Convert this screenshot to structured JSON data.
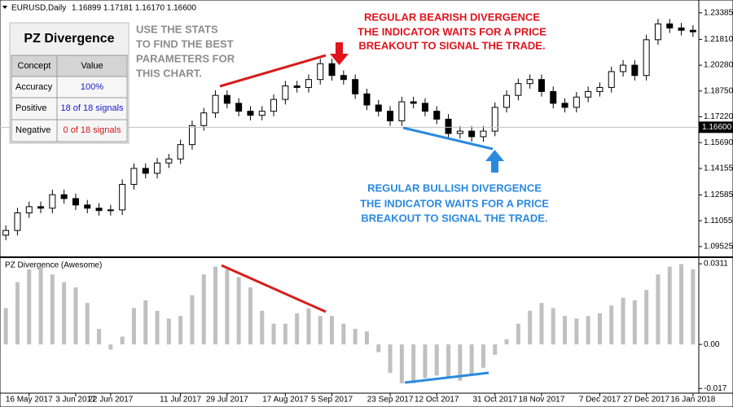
{
  "header": {
    "symbol": "EURUSD,Daily",
    "ohlc": "1.16899 1.17181 1.16170 1.16600"
  },
  "stats_table": {
    "title": "PZ Divergence",
    "columns": [
      "Concept",
      "Value"
    ],
    "rows": [
      [
        "Accuracy",
        "100%"
      ],
      [
        "Positive",
        "18 of 18 signals"
      ],
      [
        "Negative",
        "0 of 18 signals"
      ]
    ]
  },
  "annotations": {
    "stats_hint": [
      "USE THE STATS",
      "TO FIND THE BEST",
      "PARAMETERS FOR",
      "THIS CHART."
    ],
    "bearish": [
      "REGULAR BEARISH DIVERGENCE",
      "THE INDICATOR WAITS FOR A PRICE",
      "BREAKOUT TO SIGNAL THE TRADE."
    ],
    "bullish": [
      "REGULAR BULLISH DIVERGENCE",
      "THE INDICATOR WAITS FOR A PRICE",
      "BREAKOUT TO SIGNAL THE TRADE."
    ]
  },
  "chart_data": [
    {
      "type": "candlestick",
      "title": "EURUSD,Daily",
      "categories": [
        null,
        null,
        "16 May 2017",
        null,
        null,
        null,
        "3 Jun 2017",
        null,
        null,
        "22 Jun 2017",
        null,
        null,
        null,
        null,
        null,
        "11 Jul 2017",
        null,
        null,
        null,
        "29 Jul 2017",
        null,
        null,
        null,
        null,
        "17 Aug 2017",
        null,
        null,
        null,
        "5 Sep 2017",
        null,
        null,
        null,
        null,
        "23 Sep 2017",
        null,
        null,
        null,
        "12 Oct 2017",
        null,
        null,
        null,
        null,
        "31 Oct 2017",
        null,
        null,
        null,
        "18 Nov 2017",
        null,
        null,
        null,
        null,
        "7 Dec 2017",
        null,
        null,
        null,
        "27 Dec 2017",
        null,
        null,
        null,
        "16 Jan 2018"
      ],
      "open": [
        1.102,
        1.1048,
        1.1152,
        1.1189,
        1.118,
        1.126,
        1.1237,
        1.1199,
        1.118,
        1.1166,
        1.117,
        1.1321,
        1.1416,
        1.1387,
        1.1448,
        1.1472,
        1.1557,
        1.167,
        1.1745,
        1.1849,
        1.1802,
        1.1755,
        1.1731,
        1.1755,
        1.1825,
        1.1905,
        1.1896,
        1.1943,
        1.2037,
        1.1967,
        1.1943,
        1.1858,
        1.1792,
        1.1755,
        1.1698,
        1.1811,
        1.1802,
        1.1755,
        1.1708,
        1.1623,
        1.1637,
        1.1604,
        1.1637,
        1.1778,
        1.1849,
        1.1919,
        1.1943,
        1.1872,
        1.1802,
        1.1778,
        1.1839,
        1.1872,
        1.1896,
        1.199,
        1.2028,
        1.1967,
        1.2179,
        1.2273,
        1.2249,
        1.2235
      ],
      "high": [
        1.1078,
        1.1182,
        1.1219,
        1.1219,
        1.129,
        1.129,
        1.1267,
        1.1229,
        1.121,
        1.12,
        1.1351,
        1.1446,
        1.1446,
        1.1478,
        1.1502,
        1.1587,
        1.17,
        1.1775,
        1.1879,
        1.1879,
        1.1832,
        1.1785,
        1.1785,
        1.1855,
        1.1935,
        1.1935,
        1.1973,
        1.2067,
        1.2067,
        1.1997,
        1.1973,
        1.1888,
        1.1822,
        1.1785,
        1.1841,
        1.1841,
        1.1832,
        1.1785,
        1.1738,
        1.1667,
        1.1667,
        1.1667,
        1.1808,
        1.1879,
        1.1949,
        1.1973,
        1.1973,
        1.1902,
        1.1832,
        1.1869,
        1.1902,
        1.1926,
        1.202,
        1.2058,
        1.2058,
        1.2209,
        1.2303,
        1.2303,
        1.2279,
        1.2265
      ],
      "low": [
        1.099,
        1.1018,
        1.1122,
        1.115,
        1.115,
        1.1207,
        1.1169,
        1.115,
        1.1136,
        1.1136,
        1.114,
        1.1291,
        1.1357,
        1.1357,
        1.1418,
        1.1442,
        1.1527,
        1.164,
        1.1715,
        1.1772,
        1.1725,
        1.1701,
        1.1701,
        1.1725,
        1.1795,
        1.1866,
        1.1866,
        1.1913,
        1.1937,
        1.1913,
        1.1828,
        1.1762,
        1.1725,
        1.1668,
        1.1668,
        1.1772,
        1.1725,
        1.1678,
        1.1593,
        1.1593,
        1.1574,
        1.1574,
        1.1607,
        1.1748,
        1.1819,
        1.1889,
        1.1842,
        1.1772,
        1.1748,
        1.1748,
        1.1809,
        1.1842,
        1.1866,
        1.196,
        1.1937,
        1.1937,
        1.2149,
        1.2219,
        1.2205,
        1.2196
      ],
      "close": [
        1.1048,
        1.1152,
        1.1189,
        1.118,
        1.126,
        1.1237,
        1.1199,
        1.118,
        1.1166,
        1.117,
        1.1321,
        1.1416,
        1.1387,
        1.1448,
        1.1472,
        1.1557,
        1.167,
        1.1745,
        1.1849,
        1.1802,
        1.1755,
        1.1731,
        1.1755,
        1.1825,
        1.1905,
        1.1896,
        1.1943,
        1.2037,
        1.1967,
        1.1943,
        1.1858,
        1.1792,
        1.1755,
        1.1698,
        1.1811,
        1.1802,
        1.1755,
        1.1708,
        1.1623,
        1.1637,
        1.1604,
        1.1637,
        1.1778,
        1.1849,
        1.1919,
        1.1943,
        1.1872,
        1.1802,
        1.1778,
        1.1839,
        1.1872,
        1.1896,
        1.199,
        1.2028,
        1.1967,
        1.2179,
        1.2273,
        1.2249,
        1.2235,
        1.2226
      ],
      "up_color": "#ffffff",
      "down_color": "#000000",
      "current_price": {
        "value": 1.166,
        "label": "1.16600"
      },
      "ylim": [
        1.0894,
        1.2405
      ],
      "yticks": [
        1.23385,
        {
          "value": 1.2181,
          "label": "1.21810"
        },
        {
          "value": 1.2028,
          "label": "1.20280"
        },
        {
          "value": 1.1875,
          "label": "1.18750"
        },
        {
          "value": 1.1722,
          "label": "1.17220"
        },
        {
          "value": 1.1569,
          "label": "1.15690"
        },
        1.14155,
        1.12585,
        1.11055,
        1.09525
      ]
    },
    {
      "type": "bar",
      "title": "PZ Divergence (Awesome)",
      "color": "#c0c0c0",
      "values": [
        0.014,
        0.024,
        0.029,
        0.03,
        0.027,
        0.024,
        0.022,
        0.016,
        0.006,
        -0.002,
        0.003,
        0.014,
        0.017,
        0.013,
        0.01,
        0.011,
        0.019,
        0.027,
        0.03,
        0.029,
        0.026,
        0.022,
        0.013,
        0.008,
        0.008,
        0.012,
        0.014,
        0.011,
        0.011,
        0.008,
        0.006,
        0.005,
        -0.003,
        -0.011,
        -0.015,
        -0.015,
        -0.013,
        -0.012,
        -0.013,
        -0.014,
        -0.012,
        -0.009,
        -0.004,
        0.002,
        0.008,
        0.013,
        0.016,
        0.014,
        0.011,
        0.01,
        0.011,
        0.012,
        0.015,
        0.018,
        0.017,
        0.021,
        0.027,
        0.03,
        0.031,
        0.029
      ],
      "ylim": [
        -0.0188,
        0.0327
      ],
      "yticks": [
        0.0311,
        {
          "value": 0,
          "label": "0.00"
        },
        -0.017
      ]
    }
  ]
}
